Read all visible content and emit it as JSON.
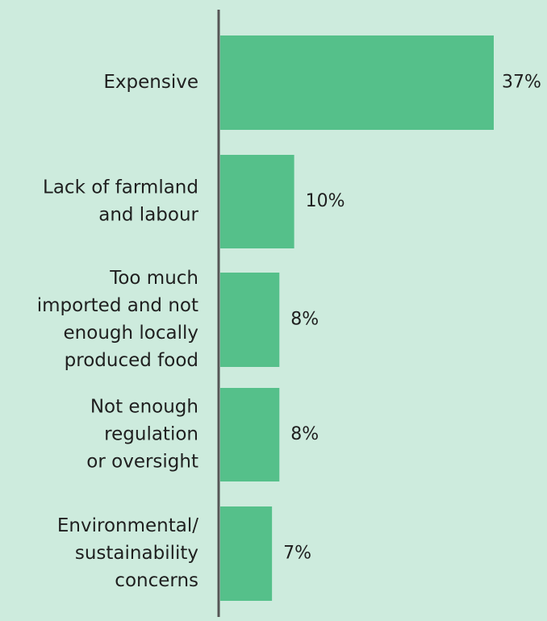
{
  "chart_data": {
    "type": "bar",
    "orientation": "horizontal",
    "categories": [
      [
        "Expensive"
      ],
      [
        "Lack of farmland",
        "and labour"
      ],
      [
        "Too much",
        "imported and not",
        "enough locally",
        "produced food"
      ],
      [
        "Not enough",
        "regulation",
        "or oversight"
      ],
      [
        "Environmental/",
        "sustainability",
        "concerns"
      ]
    ],
    "values": [
      37,
      10,
      8,
      8,
      7
    ],
    "value_labels": [
      "37%",
      "10%",
      "8%",
      "8%",
      "7%"
    ],
    "unit": "%",
    "xlim": [
      0,
      40
    ],
    "grid": false,
    "legend": "none",
    "colors": {
      "background": "#cdebdd",
      "bar": "#55c08a",
      "axis": "#555555",
      "text": "#1f1f1f"
    }
  }
}
